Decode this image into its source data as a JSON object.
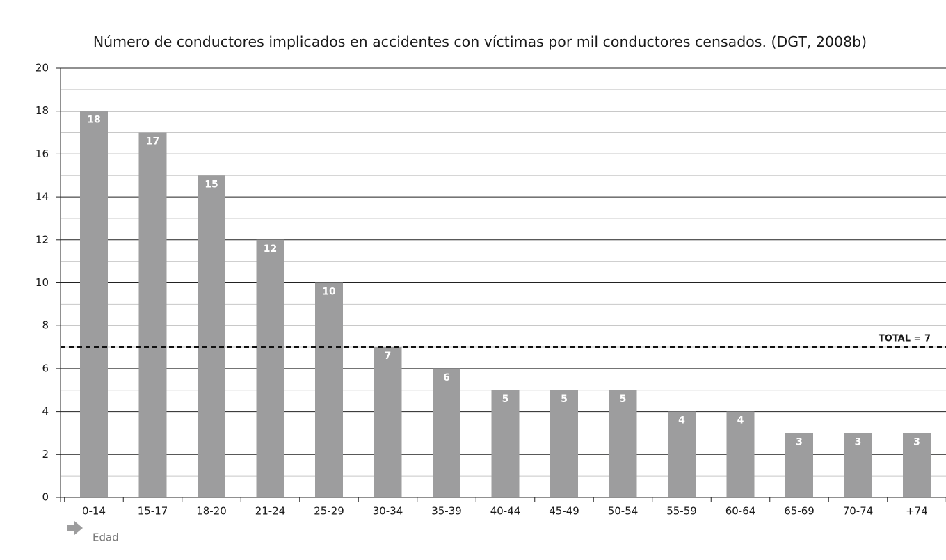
{
  "chart_data": {
    "type": "bar",
    "title": "Número de conductores implicados en accidentes con víctimas por mil conductores censados. (DGT, 2008b)",
    "categories": [
      "0-14",
      "15-17",
      "18-20",
      "21-24",
      "25-29",
      "30-34",
      "35-39",
      "40-44",
      "45-49",
      "50-54",
      "55-59",
      "60-64",
      "65-69",
      "70-74",
      "+74"
    ],
    "values": [
      18,
      17,
      15,
      12,
      10,
      7,
      6,
      5,
      5,
      5,
      4,
      4,
      3,
      3,
      3
    ],
    "color": "#9d9d9e",
    "ylim": [
      0,
      20
    ],
    "yticks": [
      0,
      2,
      4,
      6,
      8,
      10,
      12,
      14,
      16,
      18,
      20
    ],
    "minor_yticks": [
      1,
      3,
      5,
      7,
      9,
      11,
      13,
      15,
      17,
      19
    ],
    "grid": true,
    "reference_line": {
      "value": 7,
      "label": "TOTAL = 7"
    },
    "x_label": "Edad"
  }
}
